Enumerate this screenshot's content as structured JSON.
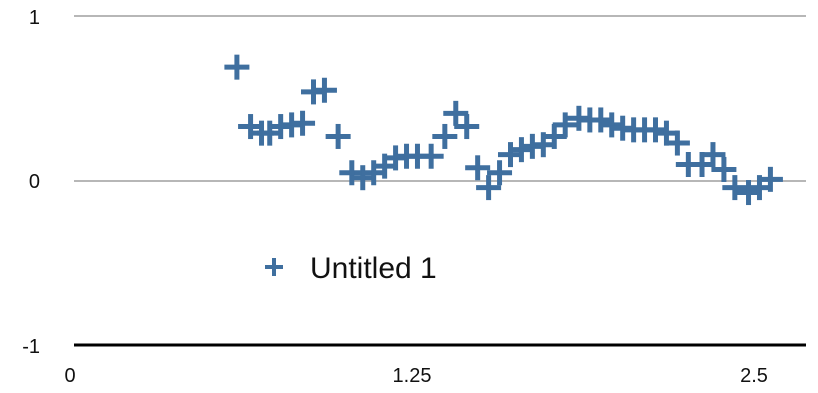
{
  "chart_data": {
    "type": "scatter",
    "title": "",
    "xlabel": "",
    "ylabel": "",
    "xlim": [
      0,
      2.65
    ],
    "ylim": [
      -1,
      1
    ],
    "x_ticks": [
      "0",
      "1.25",
      "2.5"
    ],
    "y_ticks": [
      "1",
      "0",
      "-1"
    ],
    "grid": "horizontal",
    "legend_position": "center-left",
    "series": [
      {
        "name": "Untitled 1",
        "color": "#3f6f9f",
        "marker": "plus",
        "points": [
          [
            0.61,
            0.69
          ],
          [
            0.66,
            0.33
          ],
          [
            0.7,
            0.29
          ],
          [
            0.73,
            0.29
          ],
          [
            0.77,
            0.33
          ],
          [
            0.81,
            0.34
          ],
          [
            0.85,
            0.35
          ],
          [
            0.89,
            0.54
          ],
          [
            0.93,
            0.55
          ],
          [
            0.98,
            0.27
          ],
          [
            1.03,
            0.05
          ],
          [
            1.07,
            0.02
          ],
          [
            1.11,
            0.05
          ],
          [
            1.15,
            0.09
          ],
          [
            1.19,
            0.14
          ],
          [
            1.23,
            0.15
          ],
          [
            1.27,
            0.15
          ],
          [
            1.32,
            0.15
          ],
          [
            1.37,
            0.27
          ],
          [
            1.41,
            0.41
          ],
          [
            1.45,
            0.33
          ],
          [
            1.49,
            0.08
          ],
          [
            1.53,
            -0.04
          ],
          [
            1.57,
            0.05
          ],
          [
            1.61,
            0.16
          ],
          [
            1.65,
            0.19
          ],
          [
            1.69,
            0.21
          ],
          [
            1.73,
            0.22
          ],
          [
            1.77,
            0.27
          ],
          [
            1.81,
            0.34
          ],
          [
            1.86,
            0.38
          ],
          [
            1.9,
            0.37
          ],
          [
            1.94,
            0.37
          ],
          [
            1.98,
            0.34
          ],
          [
            2.02,
            0.32
          ],
          [
            2.06,
            0.31
          ],
          [
            2.1,
            0.31
          ],
          [
            2.14,
            0.31
          ],
          [
            2.18,
            0.29
          ],
          [
            2.22,
            0.23
          ],
          [
            2.26,
            0.1
          ],
          [
            2.31,
            0.1
          ],
          [
            2.35,
            0.16
          ],
          [
            2.39,
            0.07
          ],
          [
            2.43,
            -0.04
          ],
          [
            2.48,
            -0.07
          ],
          [
            2.52,
            -0.04
          ],
          [
            2.56,
            0.01
          ]
        ]
      }
    ]
  },
  "legend": {
    "label": "Untitled 1"
  }
}
